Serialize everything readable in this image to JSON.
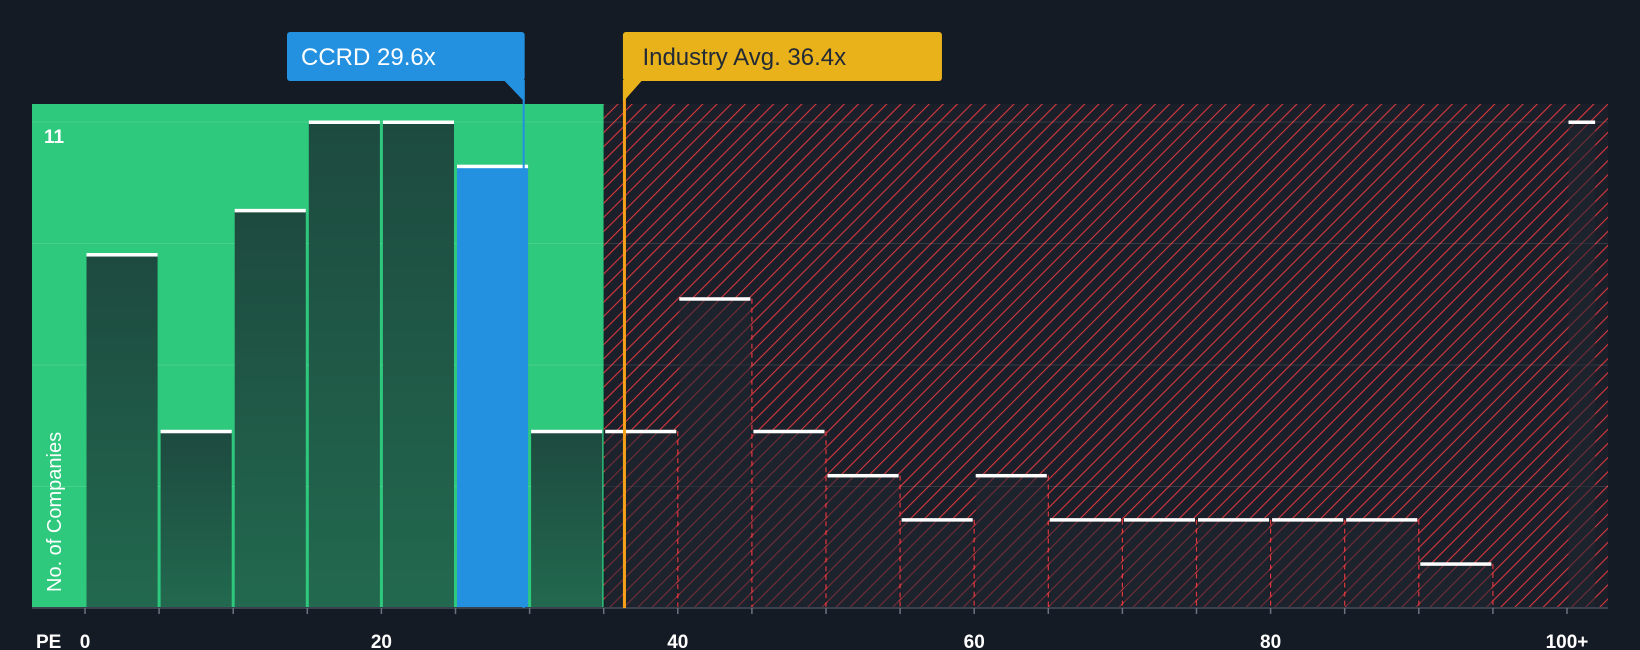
{
  "chart_data": {
    "type": "bar",
    "title": "",
    "xlabel": "PE",
    "ylabel": "No. of Companies",
    "x_tick_labels": [
      "0",
      "20",
      "40",
      "60",
      "80",
      "100+"
    ],
    "x_tick_values": [
      0,
      20,
      40,
      60,
      80,
      100
    ],
    "y_tick_label": "11",
    "y_tick_value": 11,
    "ylim": [
      0,
      11
    ],
    "xlim": [
      0,
      102
    ],
    "bin_width": 5,
    "bins": [
      {
        "start": 0,
        "end": 5,
        "count": 8
      },
      {
        "start": 5,
        "end": 10,
        "count": 4
      },
      {
        "start": 10,
        "end": 15,
        "count": 9
      },
      {
        "start": 15,
        "end": 20,
        "count": 11
      },
      {
        "start": 20,
        "end": 25,
        "count": 11
      },
      {
        "start": 25,
        "end": 30,
        "count": 10,
        "highlight": true
      },
      {
        "start": 30,
        "end": 35,
        "count": 4
      },
      {
        "start": 35,
        "end": 40,
        "count": 4
      },
      {
        "start": 40,
        "end": 45,
        "count": 7
      },
      {
        "start": 45,
        "end": 50,
        "count": 4
      },
      {
        "start": 50,
        "end": 55,
        "count": 3
      },
      {
        "start": 55,
        "end": 60,
        "count": 2
      },
      {
        "start": 60,
        "end": 65,
        "count": 3
      },
      {
        "start": 65,
        "end": 70,
        "count": 2
      },
      {
        "start": 70,
        "end": 75,
        "count": 2
      },
      {
        "start": 75,
        "end": 80,
        "count": 2
      },
      {
        "start": 80,
        "end": 85,
        "count": 2
      },
      {
        "start": 85,
        "end": 90,
        "count": 2
      },
      {
        "start": 90,
        "end": 95,
        "count": 1
      },
      {
        "start": 100,
        "end": 102,
        "count": 11
      }
    ],
    "company": {
      "label": "CCRD 29.6x",
      "value": 29.6,
      "color": "#2391e0"
    },
    "industry_avg": {
      "label": "Industry Avg. 36.4x",
      "value": 36.4,
      "color": "#eab21a"
    },
    "fair_region": {
      "from": 0,
      "to": 35,
      "color": "#2ec97d"
    },
    "overvalued_region": {
      "from": 35,
      "to": 102,
      "color": "#e0383f"
    },
    "grid": true
  }
}
